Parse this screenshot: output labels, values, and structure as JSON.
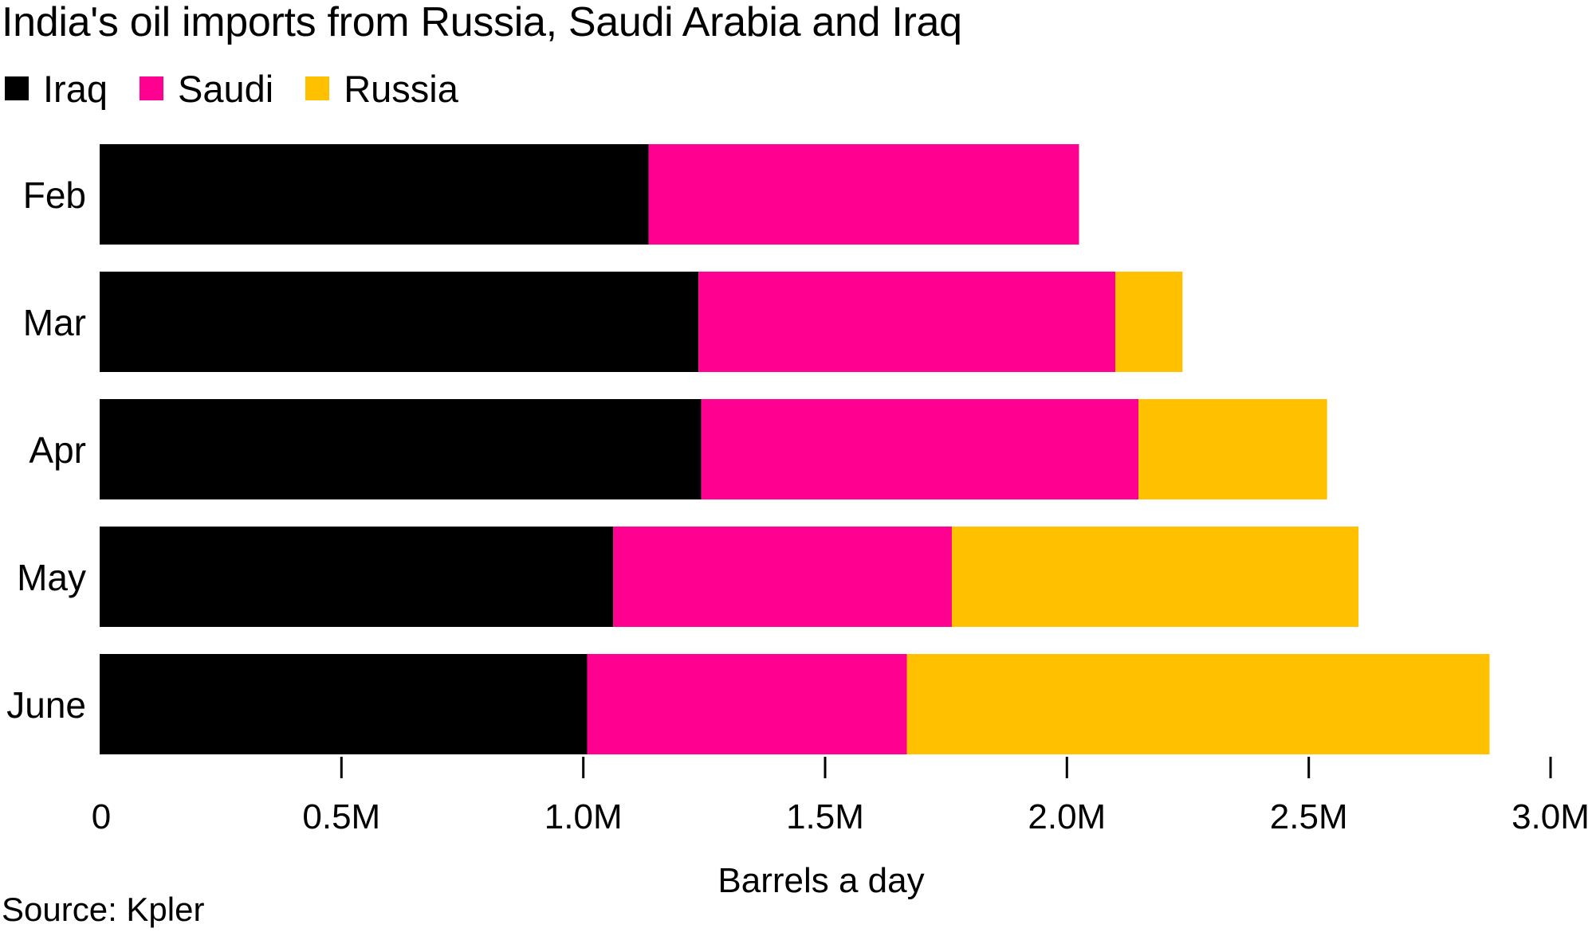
{
  "chart_data": {
    "type": "bar",
    "orientation": "horizontal",
    "stacked": true,
    "title": "India's oil imports from Russia, Saudi Arabia and Iraq",
    "xlabel": "Barrels a day",
    "ylabel": "",
    "categories": [
      "Feb",
      "Mar",
      "Apr",
      "May",
      "June"
    ],
    "series": [
      {
        "name": "Iraq",
        "color": "#000000",
        "values": [
          1135000,
          1238000,
          1244000,
          1062000,
          1008000
        ]
      },
      {
        "name": "Saudi",
        "color": "#ff0090",
        "values": [
          890000,
          862000,
          904000,
          700000,
          661000
        ]
      },
      {
        "name": "Russia",
        "color": "#ffc000",
        "values": [
          0,
          139000,
          390000,
          841000,
          1205000
        ]
      }
    ],
    "xlim": [
      0,
      3000000
    ],
    "xticks": [
      0,
      500000,
      1000000,
      1500000,
      2000000,
      2500000,
      3000000
    ],
    "xtick_labels": [
      "0",
      "0.5M",
      "1.0M",
      "1.5M",
      "2.0M",
      "2.5M",
      "3.0M"
    ],
    "legend_position": "top-left",
    "grid": false
  },
  "source": "Source: Kpler"
}
